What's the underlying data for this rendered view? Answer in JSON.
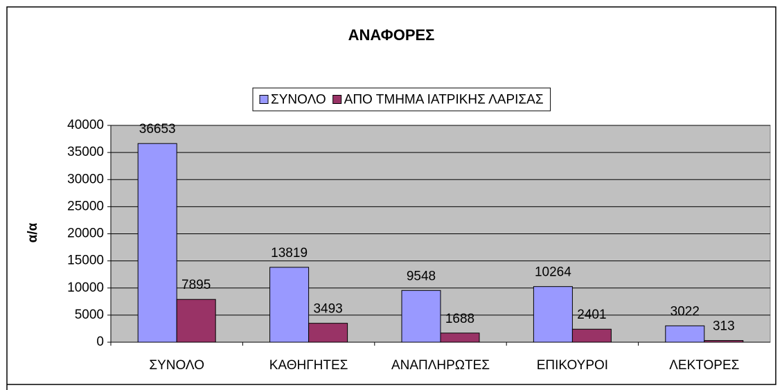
{
  "chart_data": {
    "type": "bar",
    "title": "ΑΝΑΦΟΡΕΣ",
    "y_label": "α/α",
    "categories": [
      "ΣΥΝΟΛΟ",
      "ΚΑΘΗΓΗΤΕΣ",
      "ΑΝΑΠΛΗΡΩΤΕΣ",
      "ΕΠΙΚΟΥΡΟΙ",
      "ΛΕΚΤΟΡΕΣ"
    ],
    "series": [
      {
        "name": "ΣΥΝΟΛΟ",
        "color": "#9999ff",
        "values": [
          36653,
          13819,
          9548,
          10264,
          3022
        ]
      },
      {
        "name": "ΑΠΟ ΤΜΗΜΑ ΙΑΤΡΙΚΗΣ ΛΑΡΙΣΑΣ",
        "color": "#993366",
        "values": [
          7895,
          3493,
          1688,
          2401,
          313
        ]
      }
    ],
    "ylim": [
      0,
      40000
    ],
    "yticks": [
      0,
      5000,
      10000,
      15000,
      20000,
      25000,
      30000,
      35000,
      40000
    ],
    "grid": true,
    "legend": "top"
  }
}
